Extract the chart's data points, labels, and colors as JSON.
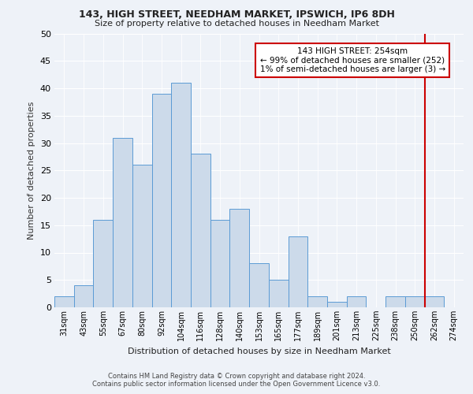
{
  "title1": "143, HIGH STREET, NEEDHAM MARKET, IPSWICH, IP6 8DH",
  "title2": "Size of property relative to detached houses in Needham Market",
  "xlabel": "Distribution of detached houses by size in Needham Market",
  "ylabel": "Number of detached properties",
  "footer1": "Contains HM Land Registry data © Crown copyright and database right 2024.",
  "footer2": "Contains public sector information licensed under the Open Government Licence v3.0.",
  "categories": [
    "31sqm",
    "43sqm",
    "55sqm",
    "67sqm",
    "80sqm",
    "92sqm",
    "104sqm",
    "116sqm",
    "128sqm",
    "140sqm",
    "153sqm",
    "165sqm",
    "177sqm",
    "189sqm",
    "201sqm",
    "213sqm",
    "225sqm",
    "238sqm",
    "250sqm",
    "262sqm",
    "274sqm"
  ],
  "values": [
    2,
    4,
    16,
    31,
    26,
    39,
    41,
    28,
    16,
    18,
    8,
    5,
    13,
    2,
    1,
    2,
    0,
    2,
    2,
    2,
    0
  ],
  "bar_color": "#ccdaea",
  "bar_edge_color": "#5b9bd5",
  "bg_color": "#eef2f8",
  "grid_color": "#ffffff",
  "annotation_text": "143 HIGH STREET: 254sqm\n← 99% of detached houses are smaller (252)\n1% of semi-detached houses are larger (3) →",
  "vline_x_index": 18.5,
  "annotation_box_facecolor": "#ffffff",
  "annotation_border_color": "#cc0000",
  "vline_color": "#cc0000",
  "ylim": [
    0,
    50
  ],
  "yticks": [
    0,
    5,
    10,
    15,
    20,
    25,
    30,
    35,
    40,
    45,
    50
  ]
}
